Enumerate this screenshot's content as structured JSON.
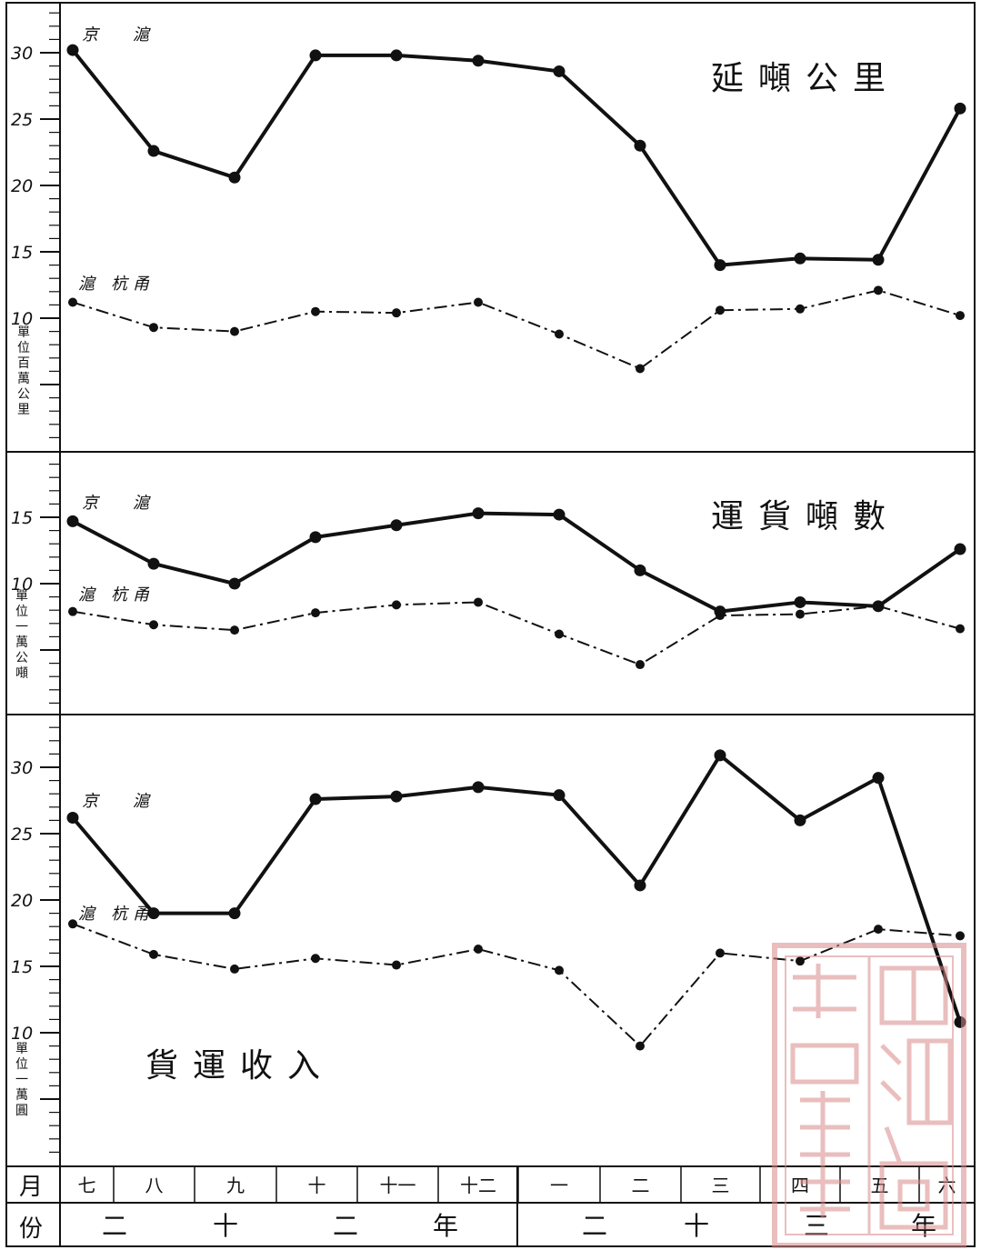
{
  "chart_data": [
    {
      "type": "line",
      "title": "延噸公里",
      "ylabel": "單位百萬公里",
      "ylim": [
        0,
        32
      ],
      "yticks": [
        "10",
        "15",
        "20",
        "25",
        "30"
      ],
      "categories": [
        "七",
        "八",
        "九",
        "十",
        "十一",
        "十二",
        "一",
        "二",
        "三",
        "四",
        "五",
        "六"
      ],
      "series": [
        {
          "name": "京滬",
          "style": "solid",
          "values": [
            30.2,
            22.6,
            20.6,
            29.8,
            29.8,
            29.4,
            28.6,
            23.0,
            14.0,
            14.5,
            14.4,
            25.8
          ]
        },
        {
          "name": "滬杭甬",
          "style": "dash-dot",
          "values": [
            11.2,
            9.3,
            9.0,
            10.5,
            10.4,
            11.2,
            8.8,
            6.2,
            10.6,
            10.7,
            12.1,
            10.2
          ]
        }
      ]
    },
    {
      "type": "line",
      "title": "運貨噸數",
      "ylabel": "單位一萬公噸",
      "ylim": [
        0,
        18
      ],
      "yticks": [
        "10",
        "15"
      ],
      "categories": [
        "七",
        "八",
        "九",
        "十",
        "十一",
        "十二",
        "一",
        "二",
        "三",
        "四",
        "五",
        "六"
      ],
      "series": [
        {
          "name": "京滬",
          "style": "solid",
          "values": [
            14.7,
            11.5,
            10.0,
            13.5,
            14.4,
            15.3,
            15.2,
            11.0,
            7.9,
            8.6,
            8.3,
            12.6
          ]
        },
        {
          "name": "滬杭甬",
          "style": "dash-dot",
          "values": [
            7.9,
            6.9,
            6.5,
            7.8,
            8.4,
            8.6,
            6.2,
            3.9,
            7.6,
            7.7,
            8.3,
            6.6
          ]
        }
      ]
    },
    {
      "type": "line",
      "title": "貨運收入",
      "ylabel": "單位一萬圓",
      "ylim": [
        0,
        32
      ],
      "yticks": [
        "10",
        "15",
        "20",
        "25",
        "30"
      ],
      "categories": [
        "七",
        "八",
        "九",
        "十",
        "十一",
        "十二",
        "一",
        "二",
        "三",
        "四",
        "五",
        "六"
      ],
      "series": [
        {
          "name": "京滬",
          "style": "solid",
          "values": [
            26.2,
            19.0,
            19.0,
            27.6,
            27.8,
            28.5,
            27.9,
            21.1,
            30.9,
            26.0,
            29.2,
            10.8
          ]
        },
        {
          "name": "滬杭甬",
          "style": "dash-dot",
          "values": [
            18.2,
            15.9,
            14.8,
            15.6,
            15.1,
            16.3,
            14.7,
            9.0,
            16.0,
            15.4,
            17.8,
            17.3
          ]
        }
      ]
    }
  ],
  "xaxis": {
    "month_label": "月份",
    "months": [
      "七",
      "八",
      "九",
      "十",
      "十一",
      "十二",
      "一",
      "二",
      "三",
      "四",
      "五",
      "六"
    ],
    "year_groups": [
      {
        "chars": [
          "二",
          "十",
          "二",
          "年"
        ]
      },
      {
        "chars": [
          "二",
          "十",
          "三",
          "年"
        ]
      }
    ]
  },
  "colors": {
    "ink": "#111111",
    "paper": "#ffffff",
    "seal": "#d98a8a"
  }
}
